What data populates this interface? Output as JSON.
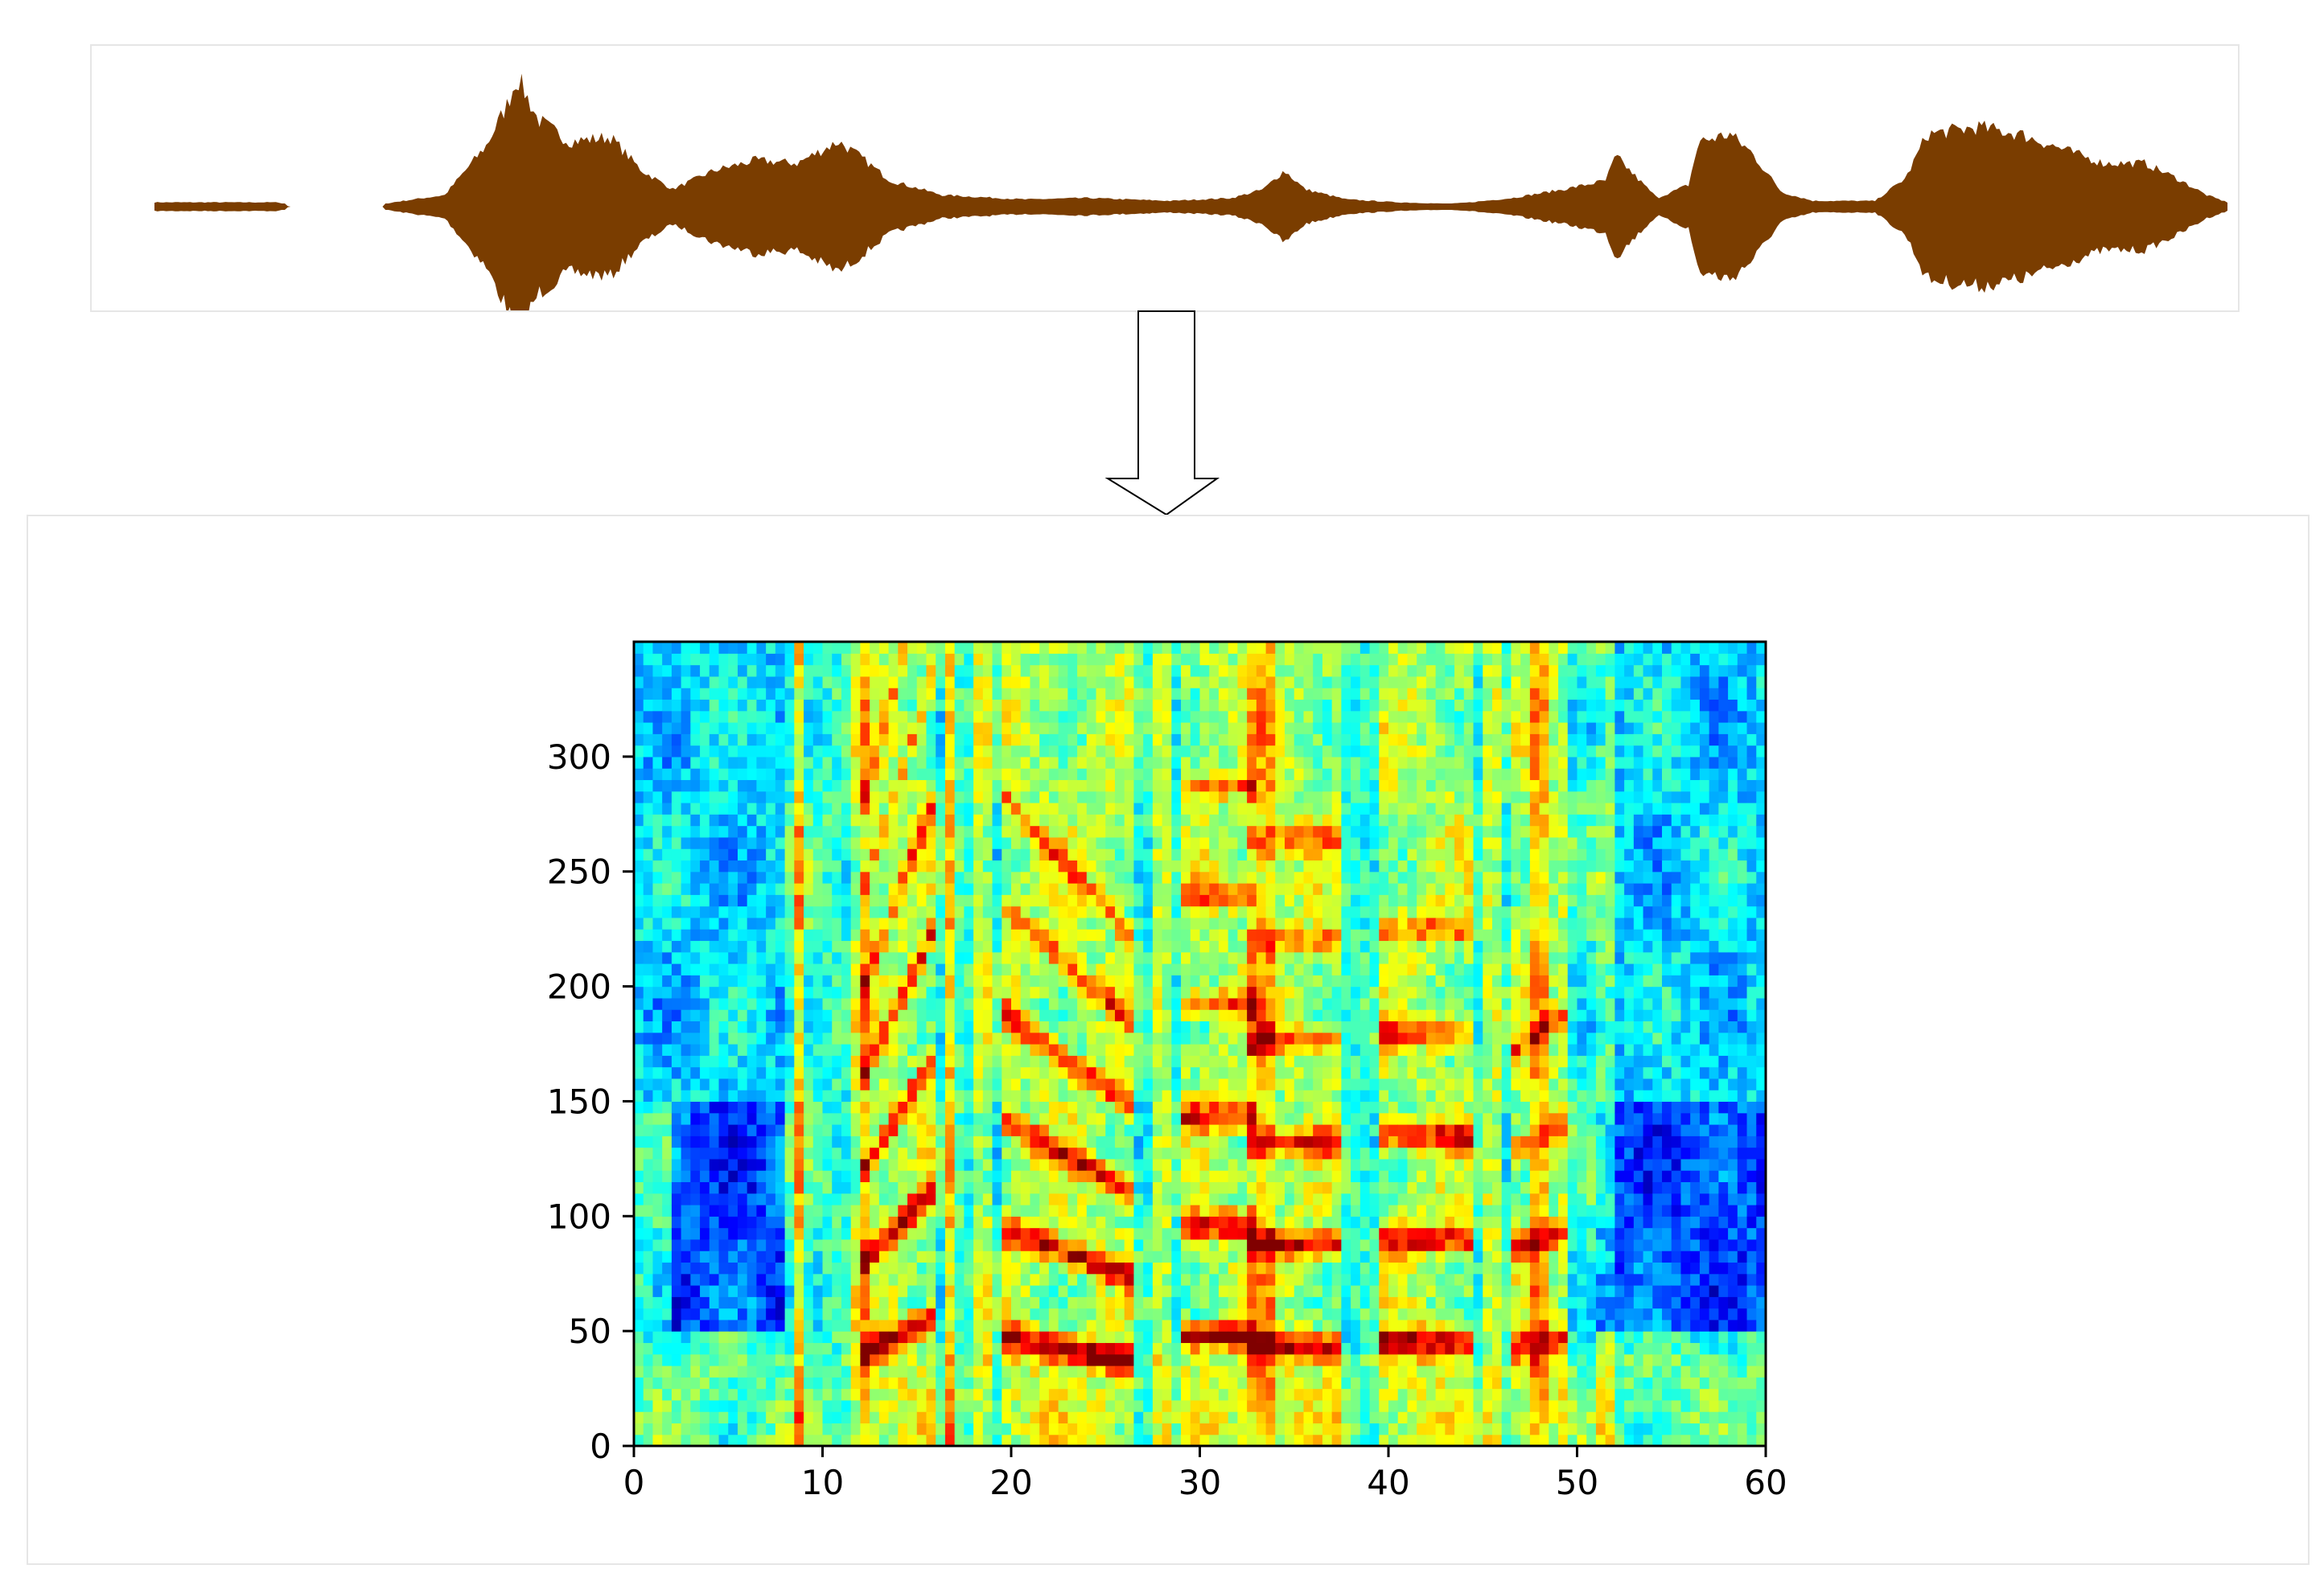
{
  "waveform": {
    "color": "#7a3d00",
    "envelope": [
      [
        0.0,
        0.03
      ],
      [
        0.06,
        0.03
      ],
      [
        0.065,
        0.0
      ],
      [
        0.11,
        0.0
      ],
      [
        0.115,
        0.03
      ],
      [
        0.14,
        0.08
      ],
      [
        0.16,
        0.42
      ],
      [
        0.17,
        0.7
      ],
      [
        0.175,
        0.9
      ],
      [
        0.185,
        0.6
      ],
      [
        0.2,
        0.45
      ],
      [
        0.22,
        0.48
      ],
      [
        0.235,
        0.25
      ],
      [
        0.25,
        0.12
      ],
      [
        0.27,
        0.25
      ],
      [
        0.29,
        0.32
      ],
      [
        0.31,
        0.3
      ],
      [
        0.33,
        0.45
      ],
      [
        0.34,
        0.35
      ],
      [
        0.355,
        0.18
      ],
      [
        0.38,
        0.08
      ],
      [
        0.42,
        0.05
      ],
      [
        0.45,
        0.06
      ],
      [
        0.49,
        0.04
      ],
      [
        0.52,
        0.06
      ],
      [
        0.535,
        0.12
      ],
      [
        0.545,
        0.25
      ],
      [
        0.555,
        0.12
      ],
      [
        0.575,
        0.05
      ],
      [
        0.6,
        0.03
      ],
      [
        0.625,
        0.02
      ],
      [
        0.635,
        0.03
      ],
      [
        0.655,
        0.06
      ],
      [
        0.68,
        0.12
      ],
      [
        0.7,
        0.18
      ],
      [
        0.705,
        0.35
      ],
      [
        0.715,
        0.2
      ],
      [
        0.725,
        0.06
      ],
      [
        0.74,
        0.15
      ],
      [
        0.745,
        0.45
      ],
      [
        0.76,
        0.5
      ],
      [
        0.77,
        0.38
      ],
      [
        0.785,
        0.1
      ],
      [
        0.8,
        0.04
      ],
      [
        0.83,
        0.04
      ],
      [
        0.845,
        0.2
      ],
      [
        0.855,
        0.5
      ],
      [
        0.88,
        0.55
      ],
      [
        0.9,
        0.5
      ],
      [
        0.92,
        0.4
      ],
      [
        0.94,
        0.3
      ],
      [
        0.96,
        0.3
      ],
      [
        0.975,
        0.2
      ],
      [
        0.99,
        0.08
      ],
      [
        1.0,
        0.03
      ]
    ]
  },
  "chart_data": {
    "type": "heatmap",
    "colormap": "jet",
    "xlim": [
      0,
      60
    ],
    "ylim": [
      0,
      350
    ],
    "x_ticks": [
      "0",
      "10",
      "20",
      "30",
      "40",
      "50",
      "60"
    ],
    "y_ticks": [
      "0",
      "50",
      "100",
      "150",
      "200",
      "250",
      "300"
    ],
    "x_tick_values": [
      0,
      10,
      20,
      30,
      40,
      50,
      60
    ],
    "y_tick_values": [
      0,
      50,
      100,
      150,
      200,
      250,
      300
    ],
    "title": "",
    "xlabel": "",
    "ylabel": "",
    "voiced_segments": [
      {
        "x_start": 12.5,
        "x_end": 15.5,
        "f0": 48,
        "harmonics": 7,
        "strength": 1.0,
        "slope": 0.35
      },
      {
        "x_start": 20.0,
        "x_end": 26.0,
        "f0": 42,
        "harmonics": 6,
        "strength": 0.95,
        "slope": -0.25
      },
      {
        "x_start": 29.5,
        "x_end": 32.5,
        "f0": 48,
        "harmonics": 6,
        "strength": 0.9,
        "slope": 0.0
      },
      {
        "x_start": 33.0,
        "x_end": 37.0,
        "f0": 44,
        "harmonics": 6,
        "strength": 0.85,
        "slope": 0.0
      },
      {
        "x_start": 40.0,
        "x_end": 44.0,
        "f0": 45,
        "harmonics": 5,
        "strength": 0.9,
        "slope": 0.0
      },
      {
        "x_start": 47.0,
        "x_end": 49.0,
        "f0": 45,
        "harmonics": 4,
        "strength": 0.7,
        "slope": 0.1
      }
    ],
    "vertical_bursts": [
      8.8,
      12.0,
      16.8,
      18.5,
      28.0,
      33.5,
      45.5,
      48.0,
      51.5
    ],
    "low_energy_regions": [
      {
        "x_start": 2,
        "x_end": 8,
        "y_start": 50,
        "y_end": 150
      },
      {
        "x_start": 51,
        "x_end": 60,
        "y_start": 50,
        "y_end": 150
      }
    ]
  }
}
